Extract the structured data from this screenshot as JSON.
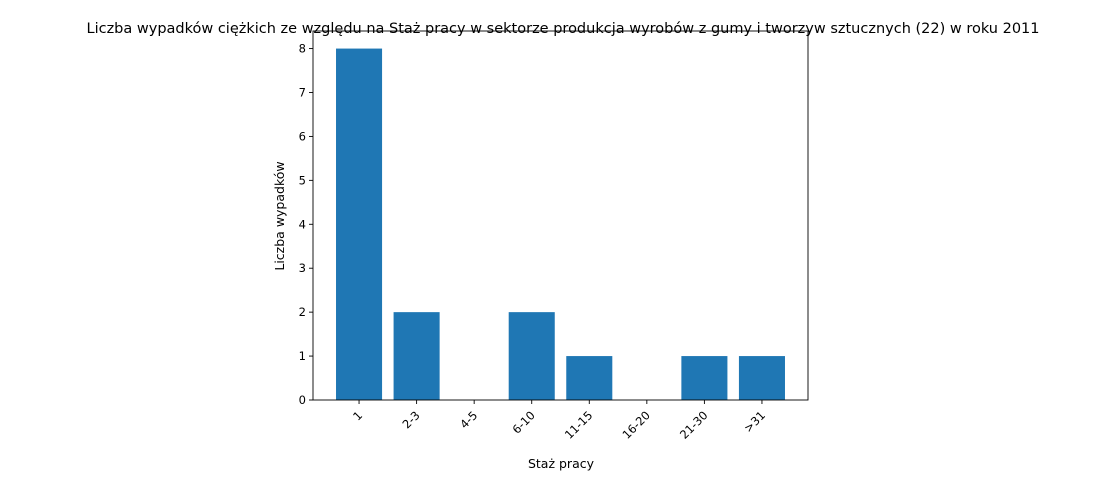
{
  "chart_data": {
    "type": "bar",
    "title": "Liczba wypadków ciężkich ze względu na Staż pracy w sektorze produkcja wyrobów z gumy i tworzyw sztucznych (22) w roku 2011",
    "xlabel": "Staż pracy",
    "ylabel": "Liczba wypadków",
    "categories": [
      "1",
      "2-3",
      "4-5",
      "6-10",
      "11-15",
      "16-20",
      "21-30",
      ">31"
    ],
    "values": [
      8,
      2,
      0,
      2,
      1,
      0,
      1,
      1
    ],
    "ylim": [
      0,
      8.4
    ],
    "yticks": [
      0,
      1,
      2,
      3,
      4,
      5,
      6,
      7,
      8
    ],
    "grid": false,
    "bar_color": "#1f77b4"
  }
}
